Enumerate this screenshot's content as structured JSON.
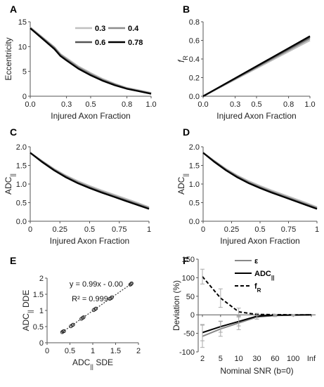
{
  "colors": {
    "c03": "#c0c0c0",
    "c04": "#8c8c8c",
    "c06": "#555555",
    "c078": "#000000"
  },
  "chart_data": [
    {
      "id": "A",
      "panel_label": "A",
      "type": "line",
      "xlabel": "Injured Axon Fraction",
      "ylabel": "Eccentricity",
      "ylabel_sub": "",
      "xlim": [
        0,
        1
      ],
      "ylim": [
        0,
        15
      ],
      "xticks": [
        0,
        0.3,
        0.5,
        0.8,
        1.0
      ],
      "xticklabels": [
        "0.0",
        "0.3",
        "0.5",
        "0.8",
        "1.0"
      ],
      "yticks": [
        0,
        5,
        10,
        15
      ],
      "yticklabels": [
        "0",
        "5",
        "10",
        "15"
      ],
      "legend": [
        {
          "label": "0.3",
          "color": "#c0c0c0"
        },
        {
          "label": "0.4",
          "color": "#8c8c8c"
        },
        {
          "label": "0.6",
          "color": "#555555"
        },
        {
          "label": "0.78",
          "color": "#000000"
        }
      ],
      "series": [
        {
          "name": "0.3",
          "color": "#c0c0c0",
          "x": [
            0,
            0.1,
            0.2,
            0.25,
            0.3,
            0.4,
            0.5,
            0.6,
            0.7,
            0.8,
            0.9,
            1.0
          ],
          "y": [
            13.9,
            11.9,
            9.9,
            8.5,
            7.7,
            6.0,
            4.7,
            3.5,
            2.5,
            1.7,
            1.2,
            0.7
          ]
        },
        {
          "name": "0.4",
          "color": "#8c8c8c",
          "x": [
            0,
            0.1,
            0.2,
            0.25,
            0.3,
            0.4,
            0.5,
            0.6,
            0.7,
            0.8,
            0.9,
            1.0
          ],
          "y": [
            13.8,
            11.8,
            9.8,
            8.4,
            7.5,
            5.8,
            4.5,
            3.3,
            2.4,
            1.6,
            1.1,
            0.6
          ]
        },
        {
          "name": "0.6",
          "color": "#555555",
          "x": [
            0,
            0.1,
            0.2,
            0.25,
            0.3,
            0.4,
            0.5,
            0.6,
            0.7,
            0.8,
            0.9,
            1.0
          ],
          "y": [
            13.7,
            11.7,
            9.6,
            8.2,
            7.3,
            5.6,
            4.3,
            3.2,
            2.3,
            1.5,
            1.0,
            0.5
          ]
        },
        {
          "name": "0.78",
          "color": "#000000",
          "x": [
            0,
            0.1,
            0.2,
            0.25,
            0.3,
            0.4,
            0.5,
            0.6,
            0.7,
            0.8,
            0.9,
            1.0
          ],
          "y": [
            13.7,
            11.6,
            9.5,
            8.1,
            7.2,
            5.5,
            4.2,
            3.1,
            2.2,
            1.5,
            1.0,
            0.5
          ]
        }
      ]
    },
    {
      "id": "B",
      "panel_label": "B",
      "type": "line",
      "xlabel": "Injured Axon Fraction",
      "ylabel": "f",
      "ylabel_sub": "R",
      "xlim": [
        0,
        1
      ],
      "ylim": [
        0,
        0.8
      ],
      "xticks": [
        0,
        0.3,
        0.5,
        0.8,
        1.0
      ],
      "xticklabels": [
        "0.0",
        "0.3",
        "0.5",
        "0.8",
        "1.0"
      ],
      "yticks": [
        0,
        0.2,
        0.4,
        0.6,
        0.8
      ],
      "yticklabels": [
        "0.0",
        "0.2",
        "0.4",
        "0.6",
        "0.8"
      ],
      "series": [
        {
          "name": "0.3",
          "color": "#c0c0c0",
          "x": [
            0,
            1.0
          ],
          "y": [
            0,
            0.6
          ]
        },
        {
          "name": "0.4",
          "color": "#8c8c8c",
          "x": [
            0,
            1.0
          ],
          "y": [
            0,
            0.62
          ]
        },
        {
          "name": "0.6",
          "color": "#555555",
          "x": [
            0,
            1.0
          ],
          "y": [
            0,
            0.635
          ]
        },
        {
          "name": "0.78",
          "color": "#000000",
          "x": [
            0,
            1.0
          ],
          "y": [
            0,
            0.645
          ]
        }
      ]
    },
    {
      "id": "C",
      "panel_label": "C",
      "type": "line",
      "xlabel": "Injured Axon Fraction",
      "ylabel": "ADC",
      "ylabel_sub": "||",
      "xlim": [
        0,
        1
      ],
      "ylim": [
        0,
        2
      ],
      "xticks": [
        0,
        0.25,
        0.5,
        0.75,
        1
      ],
      "xticklabels": [
        "0",
        "0.25",
        "0.5",
        "0.75",
        "1"
      ],
      "yticks": [
        0,
        0.5,
        1.0,
        1.5,
        2.0
      ],
      "yticklabels": [
        "0.0",
        "0.5",
        "1.0",
        "1.5",
        "2.0"
      ],
      "series": [
        {
          "name": "0.3",
          "color": "#c0c0c0",
          "x": [
            0,
            0.1,
            0.2,
            0.3,
            0.4,
            0.5,
            0.6,
            0.7,
            0.8,
            0.9,
            1.0
          ],
          "y": [
            1.84,
            1.62,
            1.41,
            1.23,
            1.08,
            0.95,
            0.83,
            0.72,
            0.61,
            0.5,
            0.38
          ]
        },
        {
          "name": "0.4",
          "color": "#8c8c8c",
          "x": [
            0,
            0.1,
            0.2,
            0.3,
            0.4,
            0.5,
            0.6,
            0.7,
            0.8,
            0.9,
            1.0
          ],
          "y": [
            1.84,
            1.61,
            1.39,
            1.21,
            1.05,
            0.92,
            0.8,
            0.69,
            0.58,
            0.47,
            0.36
          ]
        },
        {
          "name": "0.6",
          "color": "#555555",
          "x": [
            0,
            0.1,
            0.2,
            0.3,
            0.4,
            0.5,
            0.6,
            0.7,
            0.8,
            0.9,
            1.0
          ],
          "y": [
            1.84,
            1.6,
            1.38,
            1.19,
            1.03,
            0.9,
            0.78,
            0.67,
            0.56,
            0.45,
            0.34
          ]
        },
        {
          "name": "0.78",
          "color": "#000000",
          "x": [
            0,
            0.1,
            0.2,
            0.3,
            0.4,
            0.5,
            0.6,
            0.7,
            0.8,
            0.9,
            1.0
          ],
          "y": [
            1.84,
            1.59,
            1.37,
            1.18,
            1.02,
            0.89,
            0.77,
            0.66,
            0.55,
            0.44,
            0.33
          ]
        }
      ]
    },
    {
      "id": "D",
      "panel_label": "D",
      "type": "line",
      "xlabel": "Injured Axon Fraction",
      "ylabel": "ADC",
      "ylabel_sub": "||",
      "xlim": [
        0,
        1
      ],
      "ylim": [
        0,
        2
      ],
      "xticks": [
        0,
        0.25,
        0.5,
        0.75,
        1
      ],
      "xticklabels": [
        "0",
        "0.25",
        "0.5",
        "0.75",
        "1"
      ],
      "yticks": [
        0,
        0.5,
        1.0,
        1.5,
        2.0
      ],
      "yticklabels": [
        "0.0",
        "0.5",
        "1.0",
        "1.5",
        "2.0"
      ],
      "series": [
        {
          "name": "0.3",
          "color": "#c0c0c0",
          "x": [
            0,
            0.1,
            0.2,
            0.3,
            0.4,
            0.5,
            0.6,
            0.7,
            0.8,
            0.9,
            1.0
          ],
          "y": [
            1.84,
            1.62,
            1.41,
            1.23,
            1.08,
            0.95,
            0.83,
            0.72,
            0.61,
            0.5,
            0.38
          ]
        },
        {
          "name": "0.4",
          "color": "#8c8c8c",
          "x": [
            0,
            0.1,
            0.2,
            0.3,
            0.4,
            0.5,
            0.6,
            0.7,
            0.8,
            0.9,
            1.0
          ],
          "y": [
            1.84,
            1.61,
            1.39,
            1.21,
            1.05,
            0.92,
            0.8,
            0.69,
            0.58,
            0.47,
            0.36
          ]
        },
        {
          "name": "0.6",
          "color": "#555555",
          "x": [
            0,
            0.1,
            0.2,
            0.3,
            0.4,
            0.5,
            0.6,
            0.7,
            0.8,
            0.9,
            1.0
          ],
          "y": [
            1.84,
            1.6,
            1.38,
            1.19,
            1.03,
            0.9,
            0.78,
            0.67,
            0.56,
            0.45,
            0.34
          ]
        },
        {
          "name": "0.78",
          "color": "#000000",
          "x": [
            0,
            0.1,
            0.2,
            0.3,
            0.4,
            0.5,
            0.6,
            0.7,
            0.8,
            0.9,
            1.0
          ],
          "y": [
            1.84,
            1.59,
            1.37,
            1.18,
            1.02,
            0.89,
            0.77,
            0.66,
            0.55,
            0.44,
            0.33
          ]
        }
      ]
    },
    {
      "id": "E",
      "panel_label": "E",
      "type": "scatter",
      "xlabel": "ADC",
      "xlabel_sub": "||",
      "xlabel_suffix": " SDE",
      "ylabel": "ADC",
      "ylabel_sub": "||",
      "ylabel_suffix": " DDE",
      "xlim": [
        0,
        2
      ],
      "ylim": [
        0,
        2
      ],
      "xticks": [
        0,
        0.5,
        1,
        1.5,
        2
      ],
      "xticklabels": [
        "0",
        "0.5",
        "1",
        "1.5",
        "2"
      ],
      "yticks": [
        0,
        0.5,
        1.0,
        1.5,
        2.0
      ],
      "yticklabels": [
        "0",
        "0.5",
        "1",
        "1.5",
        "2"
      ],
      "equation": "y = 0.99x - 0.00",
      "r2": "R² = 0.999",
      "fit": {
        "slope": 0.99,
        "intercept": 0.0,
        "x_range": [
          0.33,
          1.84
        ]
      },
      "points": {
        "x": [
          0.33,
          0.35,
          0.37,
          0.52,
          0.55,
          0.57,
          0.75,
          0.78,
          0.8,
          1.02,
          1.05,
          1.07,
          1.37,
          1.4,
          1.42,
          1.82,
          1.84,
          1.85
        ],
        "y": [
          0.33,
          0.35,
          0.36,
          0.51,
          0.54,
          0.56,
          0.74,
          0.77,
          0.79,
          1.01,
          1.04,
          1.06,
          1.36,
          1.38,
          1.41,
          1.8,
          1.82,
          1.84
        ]
      }
    },
    {
      "id": "F",
      "panel_label": "F",
      "type": "line",
      "xlabel": "Nominal SNR (b=0)",
      "ylabel": "Deviation (%)",
      "ylabel_sub": "",
      "categories": [
        "2",
        "5",
        "10",
        "30",
        "60",
        "100",
        "Inf"
      ],
      "ylim": [
        -100,
        150
      ],
      "yticks": [
        -100,
        -50,
        0,
        50,
        100,
        150
      ],
      "yticklabels": [
        "-100",
        "-50",
        "0",
        "50",
        "100",
        "150"
      ],
      "legend": [
        {
          "label": "ε",
          "sub": "",
          "color": "#888888",
          "style": "solid"
        },
        {
          "label": "ADC",
          "sub": "||",
          "color": "#000000",
          "style": "solid"
        },
        {
          "label": "f",
          "sub": "R",
          "color": "#000000",
          "style": "dashed"
        }
      ],
      "series": [
        {
          "name": "ε",
          "color": "#888888",
          "style": "solid",
          "values": [
            -58,
            -38,
            -22,
            -6,
            -2,
            -1,
            0
          ],
          "err": [
            30,
            20,
            18,
            6,
            3,
            2,
            0
          ]
        },
        {
          "name": "ADC||",
          "color": "#000000",
          "style": "solid",
          "values": [
            -48,
            -32,
            -18,
            -4,
            -1,
            -0.5,
            0
          ],
          "err": [
            22,
            15,
            12,
            4,
            2,
            1,
            0
          ]
        },
        {
          "name": "fR",
          "color": "#000000",
          "style": "dashed",
          "values": [
            103,
            45,
            8,
            1,
            0.5,
            0,
            0
          ],
          "err": [
            20,
            25,
            10,
            3,
            1,
            0.5,
            0
          ]
        }
      ]
    }
  ]
}
